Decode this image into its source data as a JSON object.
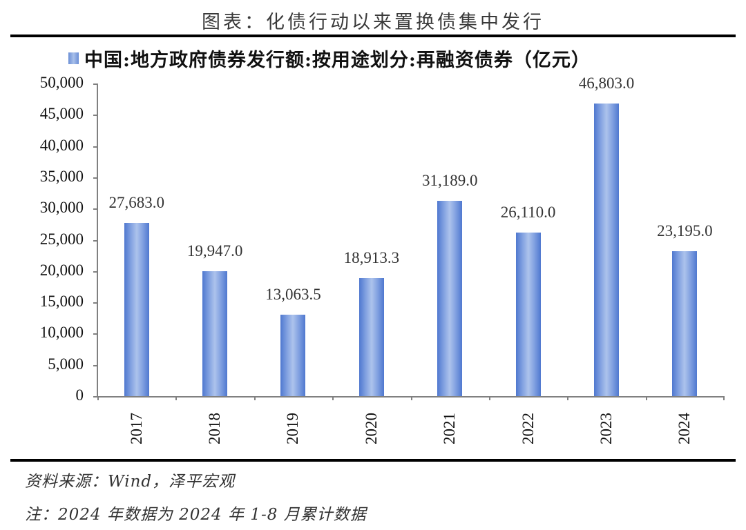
{
  "figure": {
    "title": "图表：化债行动以来置换债集中发行",
    "source": "资料来源：Wind，泽平宏观",
    "note": "注：2024 年数据为 2024 年 1-8 月累计数据"
  },
  "colors": {
    "bar_dark": "#4f78cf",
    "bar_light": "#adc3ec",
    "axis": "#808080",
    "rule": "#000000"
  },
  "chart_data": {
    "type": "bar",
    "title": "图表：化债行动以来置换债集中发行",
    "categories": [
      "2017",
      "2018",
      "2019",
      "2020",
      "2021",
      "2022",
      "2023",
      "2024"
    ],
    "series": [
      {
        "name": "中国:地方政府债券发行额:按用途划分:再融资债券（亿元）",
        "values": [
          27683.0,
          19947.0,
          13063.5,
          18913.3,
          31189.0,
          26110.0,
          46803.0,
          23195.0
        ]
      }
    ],
    "value_labels": [
      "27,683.0",
      "19,947.0",
      "13,063.5",
      "18,913.3",
      "31,189.0",
      "26,110.0",
      "46,803.0",
      "23,195.0"
    ],
    "xlabel": "",
    "ylabel": "",
    "ylim": [
      0,
      50000
    ],
    "yticks": [
      "0",
      "5,000",
      "10,000",
      "15,000",
      "20,000",
      "25,000",
      "30,000",
      "35,000",
      "40,000",
      "45,000",
      "50,000"
    ],
    "grid": false,
    "legend_position": "top",
    "xtick_rotation": -90
  }
}
